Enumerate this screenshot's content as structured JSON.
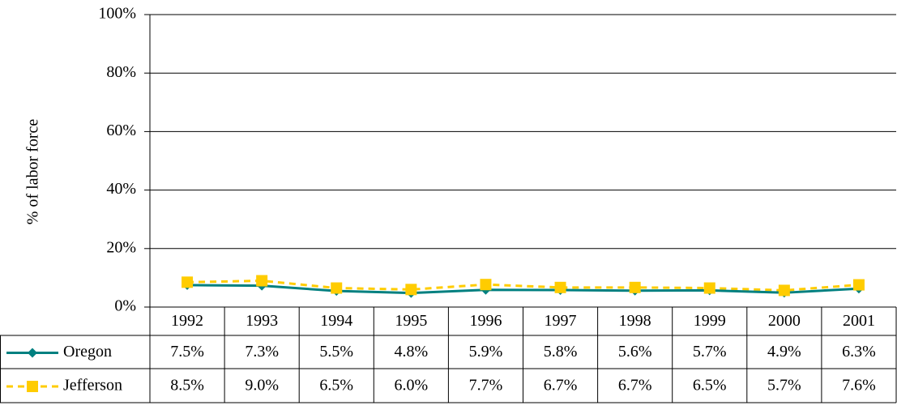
{
  "chart_data": {
    "type": "line",
    "y_label": "% of labor force",
    "categories": [
      "1992",
      "1993",
      "1994",
      "1995",
      "1996",
      "1997",
      "1998",
      "1999",
      "2000",
      "2001"
    ],
    "series": [
      {
        "name": "Oregon",
        "color": "#008080",
        "marker": "diamond",
        "dash": false,
        "values": [
          7.5,
          7.3,
          5.5,
          4.8,
          5.9,
          5.8,
          5.6,
          5.7,
          4.9,
          6.3
        ],
        "value_labels": [
          "7.5%",
          "7.3%",
          "5.5%",
          "4.8%",
          "5.9%",
          "5.8%",
          "5.6%",
          "5.7%",
          "4.9%",
          "6.3%"
        ]
      },
      {
        "name": "Jefferson",
        "color": "#ffcc00",
        "marker": "square",
        "dash": true,
        "values": [
          8.5,
          9.0,
          6.5,
          6.0,
          7.7,
          6.7,
          6.7,
          6.5,
          5.7,
          7.6
        ],
        "value_labels": [
          "8.5%",
          "9.0%",
          "6.5%",
          "6.0%",
          "7.7%",
          "6.7%",
          "6.7%",
          "6.5%",
          "5.7%",
          "7.6%"
        ]
      }
    ],
    "ylim": [
      0,
      100
    ],
    "yticks": [
      {
        "value": 0,
        "label": "0%"
      },
      {
        "value": 20,
        "label": "20%"
      },
      {
        "value": 40,
        "label": "40%"
      },
      {
        "value": 60,
        "label": "60%"
      },
      {
        "value": 80,
        "label": "80%"
      },
      {
        "value": 100,
        "label": "100%"
      }
    ],
    "grid": true,
    "data_table": true
  }
}
